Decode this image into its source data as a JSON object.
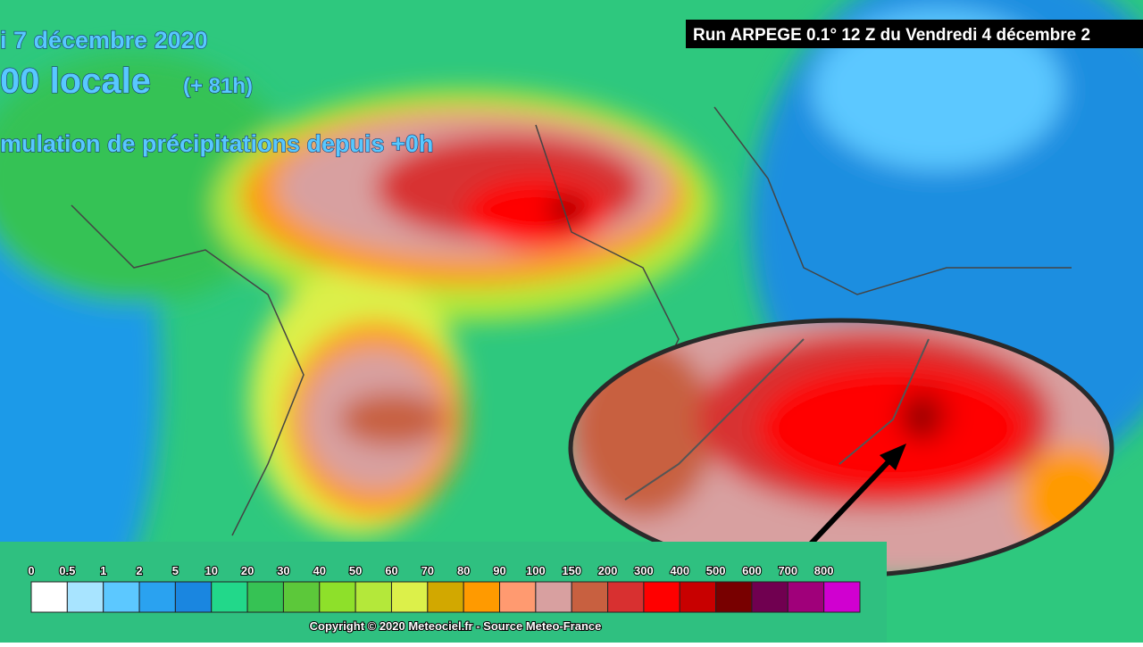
{
  "header": {
    "date": "i 7 décembre 2020",
    "time": "00 locale",
    "lead": "(+ 81h)",
    "field": "mulation de précipitations depuis +0h",
    "run": "Run ARPEGE 0.1° 12 Z du Vendredi 4 décembre 2"
  },
  "legend": {
    "labels": [
      0,
      0.5,
      1,
      2,
      5,
      10,
      20,
      30,
      40,
      50,
      60,
      70,
      80,
      90,
      100,
      150,
      200,
      300,
      400,
      500,
      600,
      700,
      800
    ],
    "colors": [
      "#ffffff",
      "#a8e4ff",
      "#5cc8ff",
      "#2aa2f0",
      "#1a86e0",
      "#22d88a",
      "#36c254",
      "#5cc83a",
      "#8ee02a",
      "#b4e83a",
      "#dcf04a",
      "#d2a800",
      "#ff9a00",
      "#ff9a70",
      "#d8a0a0",
      "#c86040",
      "#d83030",
      "#ff0000",
      "#c80000",
      "#780000",
      "#700050",
      "#a0007a",
      "#d000d0"
    ]
  },
  "footer": {
    "copyright": "Copyright © 2020 Meteociel.fr - Source Meteo-France"
  }
}
